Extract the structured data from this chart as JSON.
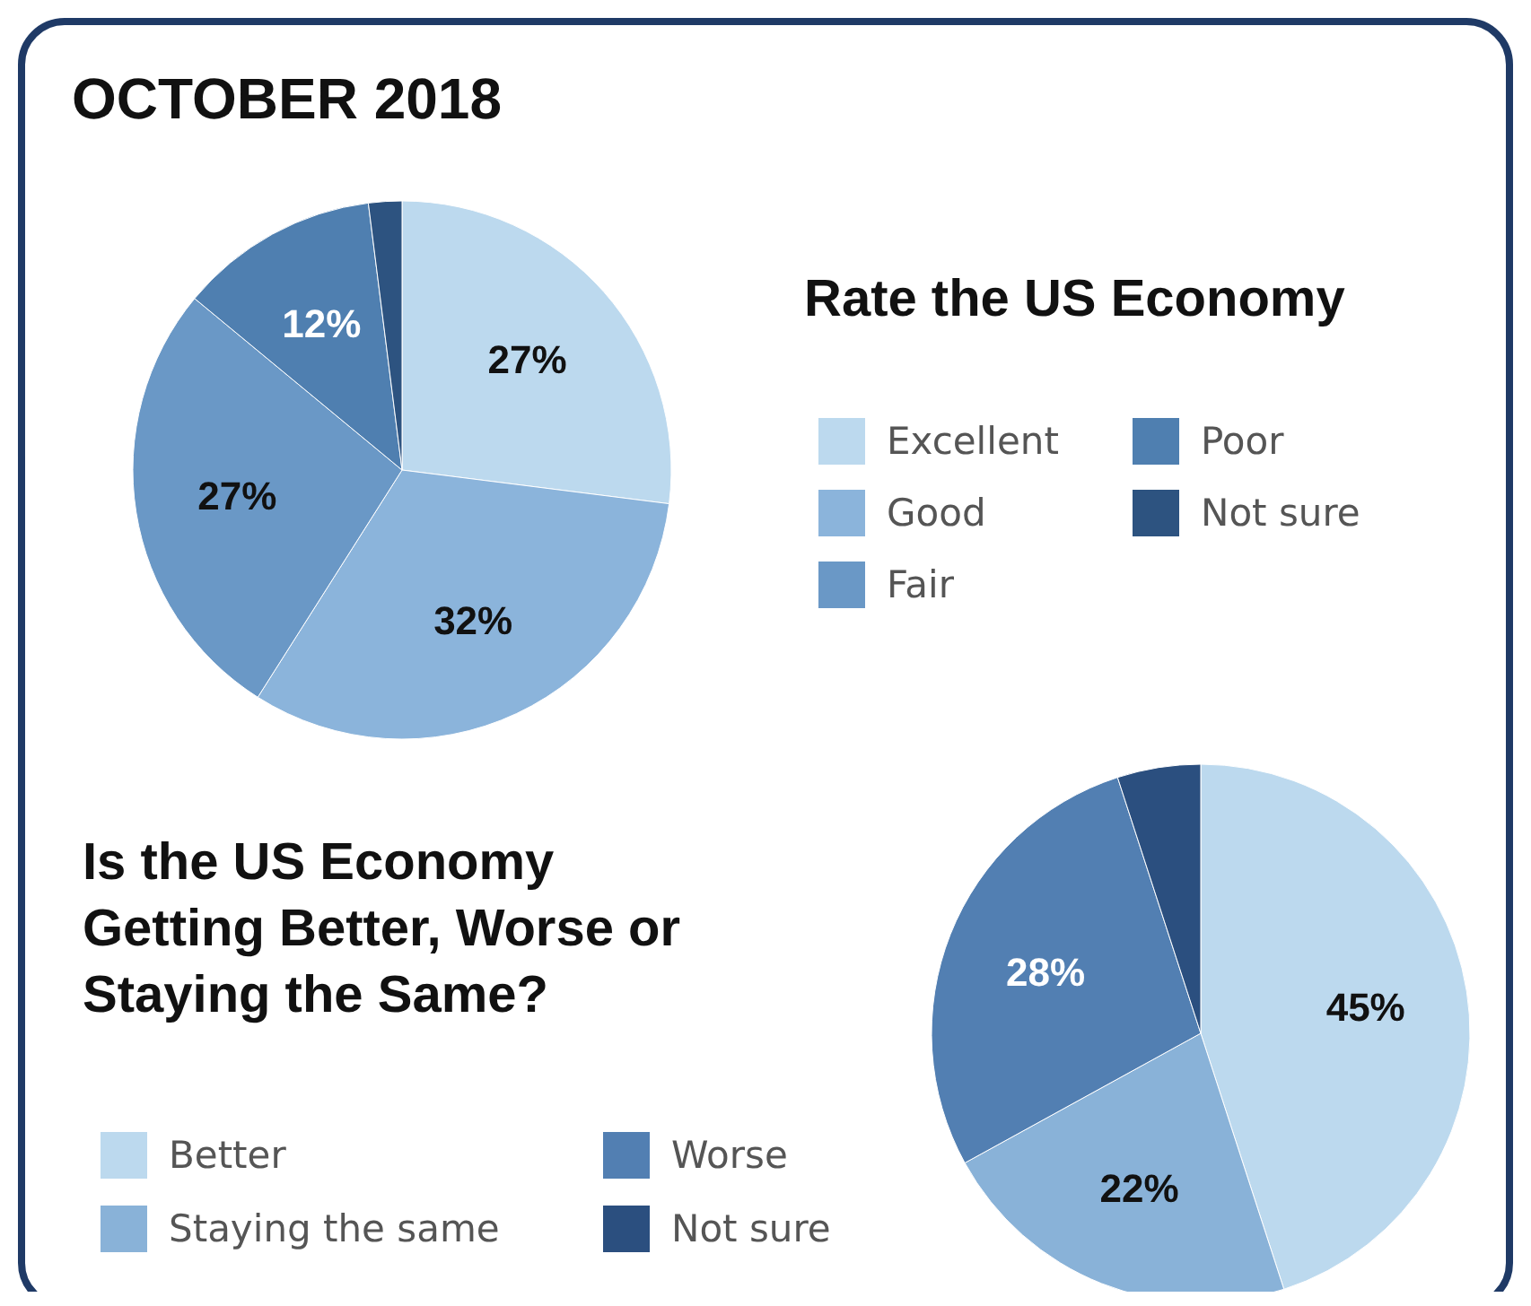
{
  "chart_data": [
    {
      "type": "pie",
      "subtitle": "OCTOBER 2018",
      "title": "Rate the US Economy",
      "categories": [
        "Excellent",
        "Good",
        "Fair",
        "Poor",
        "Not sure"
      ],
      "values": [
        27,
        32,
        27,
        12,
        2
      ],
      "value_labels": [
        "27%",
        "32%",
        "27%",
        "12%",
        null
      ],
      "colors": [
        "#bcd9ee",
        "#8bb4db",
        "#6a98c6",
        "#4f7fb0",
        "#2d5380"
      ],
      "legend": "right"
    },
    {
      "type": "pie",
      "title": "Is the US Economy Getting Better, Worse or Staying the Same?",
      "categories": [
        "Better",
        "Staying the same",
        "Worse",
        "Not sure"
      ],
      "values": [
        45,
        22,
        28,
        5
      ],
      "value_labels": [
        "45%",
        "22%",
        "28%",
        null
      ],
      "colors": [
        "#bcd9ee",
        "#89b2d8",
        "#527fb2",
        "#2b4f7f"
      ],
      "legend": "bottom left"
    }
  ]
}
